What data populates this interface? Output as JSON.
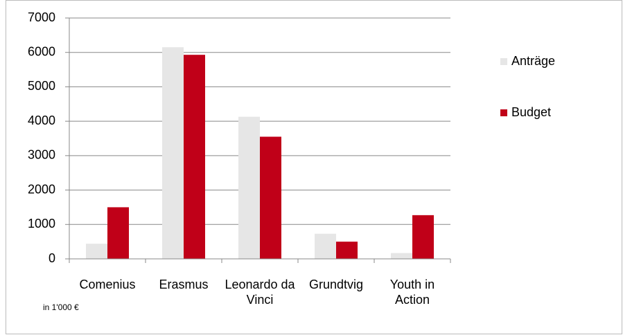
{
  "chart_data": {
    "type": "bar",
    "categories": [
      "Comenius",
      "Erasmus",
      "Leonardo da Vinci",
      "Grundtvig",
      "Youth in Action"
    ],
    "series": [
      {
        "name": "Anträge",
        "color": "#e6e6e6",
        "values": [
          440,
          6150,
          4130,
          730,
          170
        ]
      },
      {
        "name": "Budget",
        "color": "#c00018",
        "values": [
          1500,
          5930,
          3550,
          500,
          1270
        ]
      }
    ],
    "ylim": [
      0,
      7000
    ],
    "yticks": [
      0,
      1000,
      2000,
      3000,
      4000,
      5000,
      6000,
      7000
    ],
    "grid": true,
    "legend": "right",
    "annotation": "in 1'000 €"
  }
}
